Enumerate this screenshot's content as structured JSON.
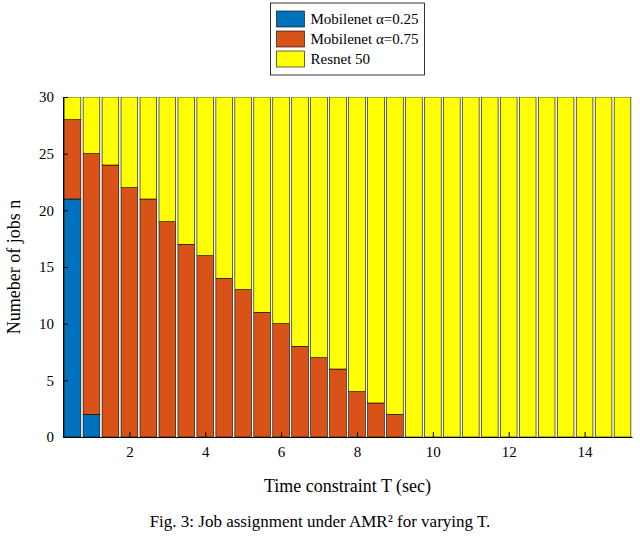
{
  "chart_data": {
    "type": "bar",
    "stacked": true,
    "title": "Fig. 3: Job assignment under AMR² for varying T.",
    "x_label": "Time constraint T (sec)",
    "y_label": "Numeber of jobs n",
    "x": [
      0.5,
      1,
      1.5,
      2,
      2.5,
      3,
      3.5,
      4,
      4.5,
      5,
      5.5,
      6,
      6.5,
      7,
      7.5,
      8,
      8.5,
      9,
      9.5,
      10,
      10.5,
      11,
      11.5,
      12,
      12.5,
      13,
      13.5,
      14,
      14.5,
      15
    ],
    "series": [
      {
        "name": "Mobilenet α=0.25",
        "color": "#0072bd",
        "values": [
          21,
          2,
          0,
          0,
          0,
          0,
          0,
          0,
          0,
          0,
          0,
          0,
          0,
          0,
          0,
          0,
          0,
          0,
          0,
          0,
          0,
          0,
          0,
          0,
          0,
          0,
          0,
          0,
          0,
          0
        ]
      },
      {
        "name": "Mobilenet α=0.75",
        "color": "#d95319",
        "values": [
          7,
          23,
          24,
          22,
          21,
          19,
          17,
          16,
          14,
          13,
          11,
          10,
          8,
          7,
          6,
          4,
          3,
          2,
          0,
          0,
          0,
          0,
          0,
          0,
          0,
          0,
          0,
          0,
          0,
          0
        ]
      },
      {
        "name": "Resnet 50",
        "color": "#ffff00",
        "values": [
          2,
          5,
          6,
          8,
          9,
          11,
          13,
          14,
          16,
          17,
          19,
          20,
          22,
          23,
          24,
          26,
          27,
          28,
          30,
          30,
          30,
          30,
          30,
          30,
          30,
          30,
          30,
          30,
          30,
          30
        ]
      }
    ],
    "xlim": [
      0.25,
      15.25
    ],
    "xticks": [
      2,
      4,
      6,
      8,
      10,
      12,
      14
    ],
    "ylim": [
      0,
      30
    ],
    "yticks": [
      0,
      5,
      10,
      15,
      20,
      25,
      30
    ],
    "grid": false,
    "legend": "upper center"
  }
}
